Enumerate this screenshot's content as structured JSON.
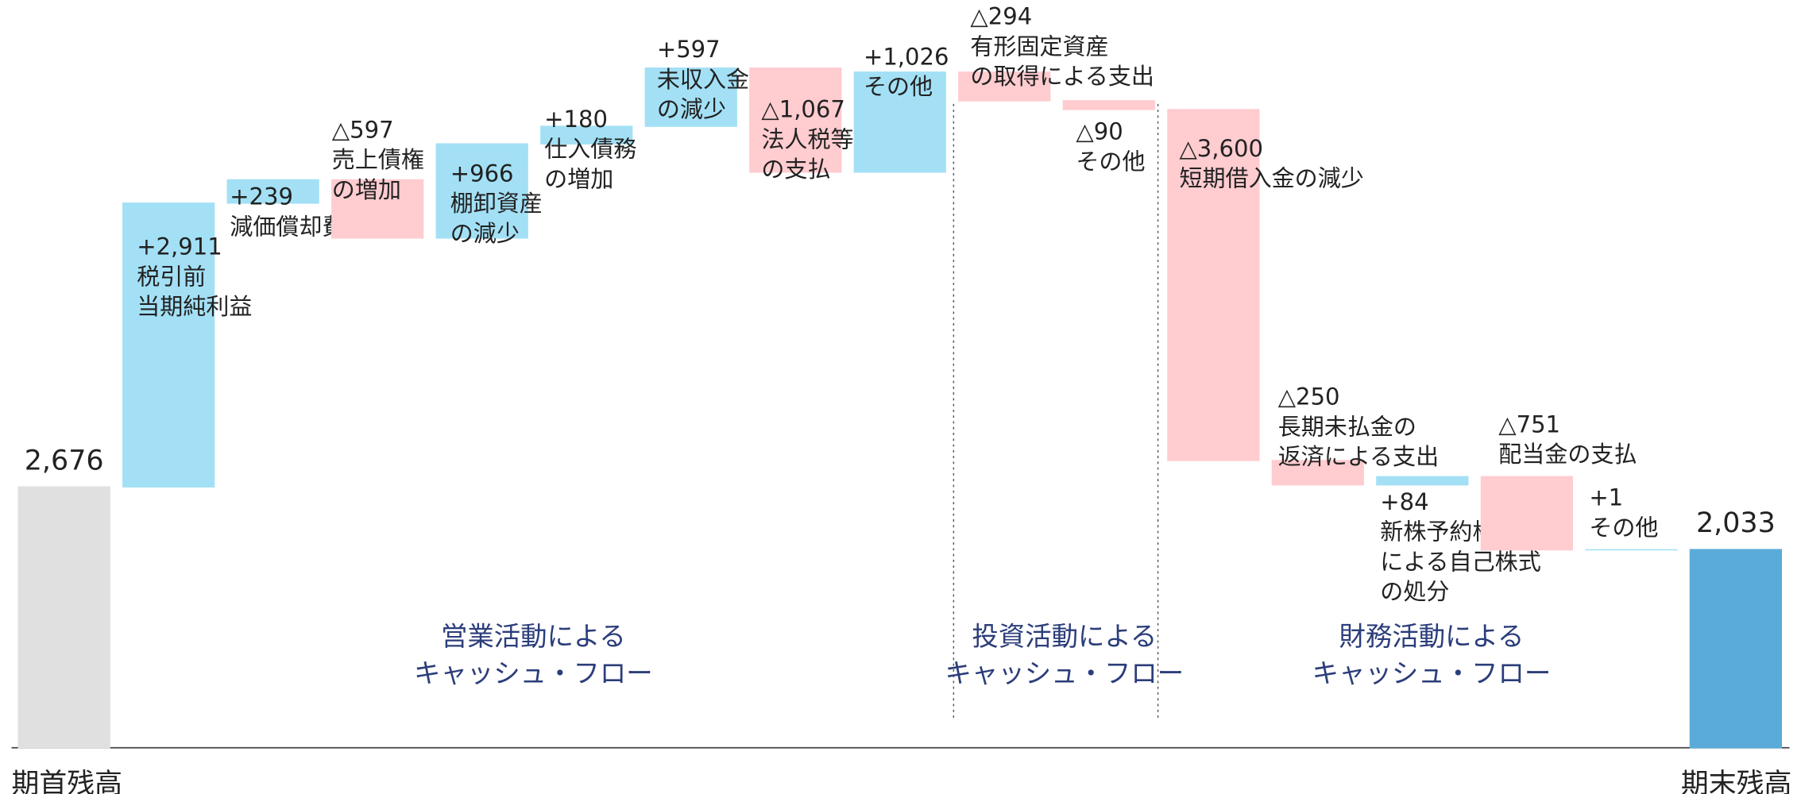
{
  "chart_data": {
    "type": "waterfall",
    "categories": [
      [
        "期首残高"
      ],
      [
        "税引前",
        "当期純利益"
      ],
      [
        "減価償却費"
      ],
      [
        "売上債権",
        "の増加"
      ],
      [
        "棚卸資産",
        "の減少"
      ],
      [
        "仕入債務",
        "の増加"
      ],
      [
        "未収入金",
        "の減少"
      ],
      [
        "法人税等",
        "の支払"
      ],
      [
        "その他"
      ],
      [
        "有形固定資産",
        "の取得による支出"
      ],
      [
        "その他"
      ],
      [
        "短期借入金の減少"
      ],
      [
        "長期未払金の",
        "返済による支出"
      ],
      [
        "新株予約権の行使",
        "による自己株式",
        "の処分"
      ],
      [
        "配当金の支払"
      ],
      [
        "その他"
      ],
      [
        "期末残高"
      ]
    ],
    "measure": [
      "absolute",
      "relative",
      "relative",
      "relative",
      "relative",
      "relative",
      "relative",
      "relative",
      "relative",
      "relative",
      "relative",
      "relative",
      "relative",
      "relative",
      "relative",
      "relative",
      "absolute"
    ],
    "values": [
      2676,
      2911,
      239,
      -597,
      966,
      180,
      597,
      -1067,
      1026,
      -294,
      -90,
      -3600,
      -250,
      84,
      -751,
      1,
      2033
    ],
    "value_labels": [
      "2,676",
      "+2,911",
      "+239",
      "△597",
      "+966",
      "+180",
      "+597",
      "△1,067",
      "+1,026",
      "△294",
      "△90",
      "△3,600",
      "△250",
      "+84",
      "△751",
      "+1",
      "2,033"
    ],
    "start_color": "#e0e0e0",
    "end_color": "#5aabd9",
    "increase_color": "#a3e0f5",
    "decrease_color": "#ffccd0",
    "ylim": [
      0,
      7670
    ],
    "annotations": [
      [
        "営業活動による",
        "キャッシュ・フロー"
      ],
      [
        "投資活動による",
        "キャッシュ・フロー"
      ],
      [
        "財務活動による",
        "キャッシュ・フロー"
      ]
    ]
  }
}
